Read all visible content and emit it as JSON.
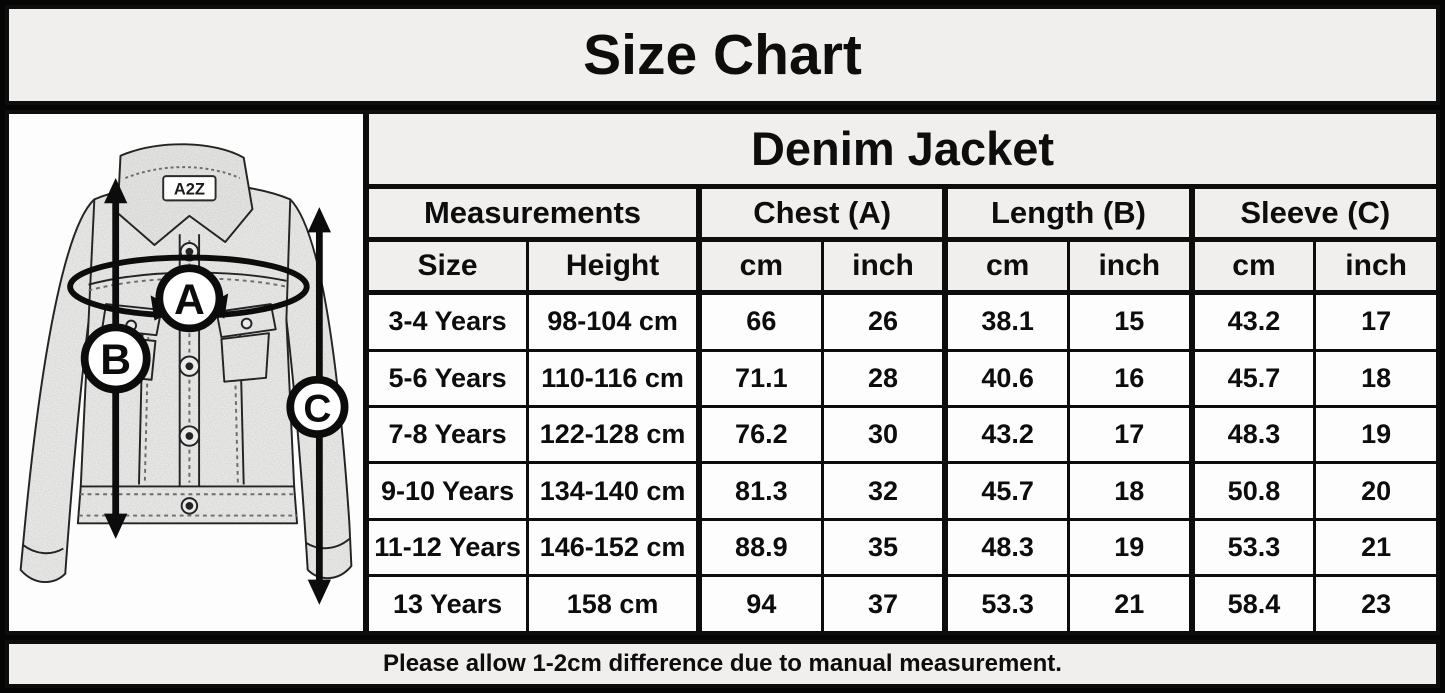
{
  "title": "Size Chart",
  "note": "Please allow 1-2cm difference due to manual measurement.",
  "jacket": {
    "brand_label": "A2Z",
    "label_a": "A",
    "label_b": "B",
    "label_c": "C"
  },
  "colors": {
    "header_bg": "#f0efed",
    "cell_bg": "#fdfdfd",
    "border": "#0d0d0d"
  },
  "chart_data": {
    "type": "table",
    "title": "Denim Jacket",
    "group_columns": [
      {
        "label": "Measurements",
        "span": 2
      },
      {
        "label": "Chest (A)",
        "span": 2
      },
      {
        "label": "Length (B)",
        "span": 2
      },
      {
        "label": "Sleeve (C)",
        "span": 2
      }
    ],
    "columns": [
      "Size",
      "Height",
      "cm",
      "inch",
      "cm",
      "inch",
      "cm",
      "inch"
    ],
    "rows": [
      [
        "3-4 Years",
        "98-104 cm",
        66,
        26,
        38.1,
        15,
        43.2,
        17
      ],
      [
        "5-6 Years",
        "110-116 cm",
        71.1,
        28,
        40.6,
        16,
        45.7,
        18
      ],
      [
        "7-8 Years",
        "122-128 cm",
        76.2,
        30,
        43.2,
        17,
        48.3,
        19
      ],
      [
        "9-10 Years",
        "134-140 cm",
        81.3,
        32,
        45.7,
        18,
        50.8,
        20
      ],
      [
        "11-12 Years",
        "146-152 cm",
        88.9,
        35,
        48.3,
        19,
        53.3,
        21
      ],
      [
        "13 Years",
        "158 cm",
        94,
        37,
        53.3,
        21,
        58.4,
        23
      ]
    ]
  }
}
